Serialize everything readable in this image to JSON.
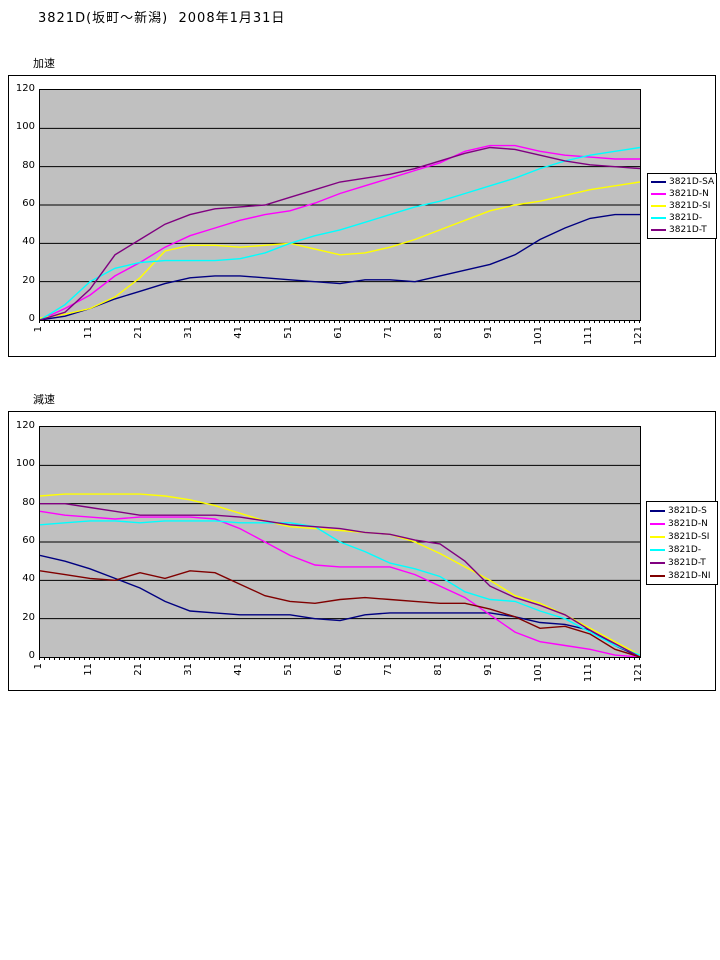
{
  "page": {
    "title": "3821D(坂町～新潟)  2008年1月31日"
  },
  "colors": {
    "page_bg": "#FFFFFF",
    "plot_bg": "#C0C0C0",
    "gridline": "#000000",
    "frame_border": "#000000"
  },
  "chart_data": [
    {
      "type": "line",
      "label": "加速",
      "title": "",
      "grid": true,
      "legend_position": "right",
      "y_axis": {
        "min": 0,
        "max": 120,
        "ticks": [
          120,
          100,
          80,
          60,
          40,
          20,
          0
        ]
      },
      "x_axis": {
        "count": 121,
        "ticks": [
          1,
          11,
          21,
          31,
          41,
          51,
          61,
          71,
          81,
          91,
          101,
          111,
          121
        ]
      },
      "x_start": 1,
      "x_step": 5,
      "series": [
        {
          "name": "3821D-SA",
          "color": "#000080",
          "values": [
            0,
            2,
            6,
            11,
            15,
            19,
            22,
            23,
            23,
            22,
            21,
            20,
            19,
            21,
            21,
            20,
            23,
            26,
            29,
            34,
            42,
            48,
            53,
            55,
            55
          ]
        },
        {
          "name": "3821D-N",
          "color": "#FF00FF",
          "values": [
            0,
            6,
            13,
            23,
            30,
            38,
            44,
            48,
            52,
            55,
            57,
            61,
            66,
            70,
            74,
            78,
            82,
            88,
            91,
            91,
            88,
            86,
            85,
            84,
            84
          ]
        },
        {
          "name": "3821D-SI",
          "color": "#FFFF00",
          "values": [
            1,
            3,
            6,
            12,
            22,
            36,
            39,
            39,
            38,
            39,
            40,
            37,
            34,
            35,
            38,
            42,
            47,
            52,
            57,
            60,
            62,
            65,
            68,
            70,
            72
          ]
        },
        {
          "name": "3821D-",
          "color": "#00FFFF",
          "values": [
            0,
            8,
            20,
            27,
            30,
            31,
            31,
            31,
            32,
            35,
            40,
            44,
            47,
            51,
            55,
            59,
            62,
            66,
            70,
            74,
            79,
            83,
            86,
            88,
            90
          ]
        },
        {
          "name": "3821D-T",
          "color": "#800080",
          "values": [
            0,
            4,
            16,
            34,
            42,
            50,
            55,
            58,
            59,
            60,
            64,
            68,
            72,
            74,
            76,
            79,
            83,
            87,
            90,
            89,
            86,
            83,
            81,
            80,
            79
          ]
        }
      ]
    },
    {
      "type": "line",
      "label": "減速",
      "title": "",
      "grid": true,
      "legend_position": "right",
      "y_axis": {
        "min": 0,
        "max": 120,
        "ticks": [
          120,
          100,
          80,
          60,
          40,
          20,
          0
        ]
      },
      "x_axis": {
        "count": 121,
        "ticks": [
          1,
          11,
          21,
          31,
          41,
          51,
          61,
          71,
          81,
          91,
          101,
          111,
          121
        ]
      },
      "x_start": 1,
      "x_step": 5,
      "series": [
        {
          "name": "3821D-S",
          "color": "#000080",
          "values": [
            53,
            50,
            46,
            41,
            36,
            29,
            24,
            23,
            22,
            22,
            22,
            20,
            19,
            22,
            23,
            23,
            23,
            23,
            23,
            21,
            18,
            17,
            14,
            6,
            0
          ]
        },
        {
          "name": "3821D-N",
          "color": "#FF00FF",
          "values": [
            76,
            74,
            73,
            72,
            73,
            73,
            73,
            72,
            67,
            60,
            53,
            48,
            47,
            47,
            47,
            43,
            37,
            31,
            22,
            13,
            8,
            6,
            4,
            1,
            0
          ]
        },
        {
          "name": "3821D-SI",
          "color": "#FFFF00",
          "values": [
            84,
            85,
            85,
            85,
            85,
            84,
            82,
            79,
            75,
            71,
            68,
            67,
            66,
            65,
            64,
            60,
            54,
            47,
            40,
            32,
            28,
            22,
            15,
            8,
            1
          ]
        },
        {
          "name": "3821D-",
          "color": "#00FFFF",
          "values": [
            69,
            70,
            71,
            71,
            70,
            71,
            71,
            71,
            70,
            70,
            70,
            68,
            60,
            55,
            49,
            46,
            42,
            34,
            30,
            29,
            24,
            20,
            13,
            6,
            1
          ]
        },
        {
          "name": "3821D-T",
          "color": "#800080",
          "values": [
            80,
            80,
            78,
            76,
            74,
            74,
            74,
            74,
            73,
            71,
            69,
            68,
            67,
            65,
            64,
            61,
            59,
            50,
            37,
            31,
            27,
            22,
            14,
            7,
            0
          ]
        },
        {
          "name": "3821D-NI",
          "color": "#800000",
          "values": [
            45,
            43,
            41,
            40,
            44,
            41,
            45,
            44,
            38,
            32,
            29,
            28,
            30,
            31,
            30,
            29,
            28,
            28,
            25,
            21,
            15,
            16,
            12,
            4,
            0
          ]
        }
      ]
    }
  ]
}
